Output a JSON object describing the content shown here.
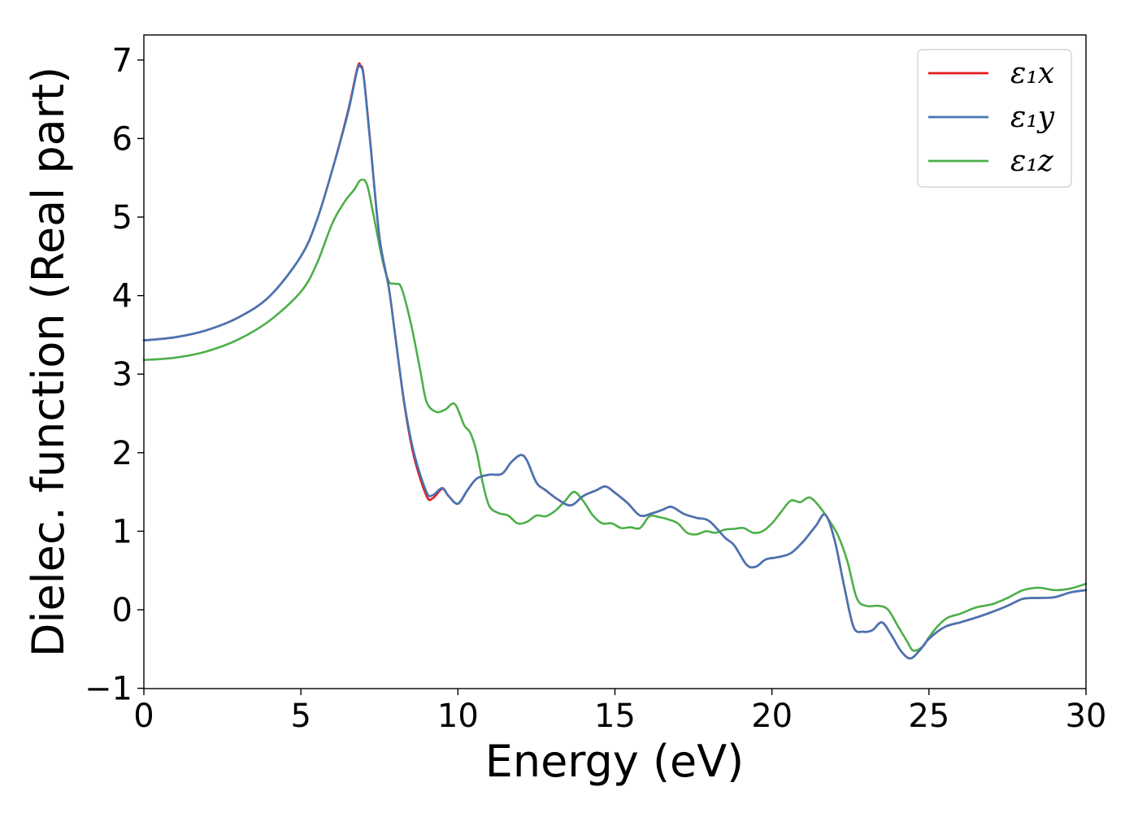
{
  "chart_data": {
    "type": "line",
    "title": "",
    "xlabel": "Energy (eV)",
    "ylabel": "Dielec. function (Real part)",
    "xlim": [
      0,
      30
    ],
    "ylim": [
      -1,
      7.3
    ],
    "xticks": [
      0,
      5,
      10,
      15,
      20,
      25,
      30
    ],
    "yticks": [
      -1,
      0,
      1,
      2,
      3,
      4,
      5,
      6,
      7
    ],
    "xtick_labels": [
      "0",
      "5",
      "10",
      "15",
      "20",
      "25",
      "30"
    ],
    "ytick_labels": [
      "−1",
      "0",
      "1",
      "2",
      "3",
      "4",
      "5",
      "6",
      "7"
    ],
    "grid": false,
    "legend_position": "top-right",
    "series": [
      {
        "name": "ε₁x",
        "color": "#e41a1c",
        "x": [
          0,
          1,
          2,
          3,
          4,
          5,
          5.5,
          6,
          6.5,
          6.8,
          6.9,
          7.0,
          7.2,
          7.5,
          7.8,
          8.0,
          8.3,
          8.6,
          9.0,
          9.2,
          9.5,
          9.7,
          10.0,
          10.3,
          10.6,
          11.0,
          11.4,
          11.7,
          12.0,
          12.2,
          12.5,
          12.8,
          13.2,
          13.6,
          14.0,
          14.4,
          14.7,
          15.0,
          15.4,
          15.8,
          16.2,
          16.5,
          16.8,
          17.2,
          17.6,
          18.0,
          18.5,
          18.8,
          19.2,
          19.5,
          19.8,
          20.2,
          20.6,
          21.0,
          21.4,
          21.7,
          22.0,
          22.3,
          22.6,
          22.9,
          23.2,
          23.5,
          23.8,
          24.1,
          24.4,
          24.7,
          25.0,
          25.5,
          26.0,
          26.5,
          27.0,
          27.5,
          28.0,
          28.5,
          29.0,
          29.5,
          30.0
        ],
        "y": [
          3.43,
          3.47,
          3.56,
          3.72,
          3.99,
          4.5,
          4.95,
          5.6,
          6.35,
          6.9,
          6.93,
          6.8,
          6.0,
          4.75,
          4.1,
          3.5,
          2.6,
          1.95,
          1.45,
          1.42,
          1.54,
          1.45,
          1.35,
          1.52,
          1.67,
          1.72,
          1.73,
          1.88,
          1.97,
          1.9,
          1.62,
          1.52,
          1.4,
          1.33,
          1.45,
          1.52,
          1.57,
          1.49,
          1.36,
          1.2,
          1.23,
          1.27,
          1.31,
          1.22,
          1.17,
          1.13,
          0.92,
          0.82,
          0.57,
          0.55,
          0.64,
          0.67,
          0.72,
          0.87,
          1.07,
          1.21,
          0.88,
          0.3,
          -0.22,
          -0.28,
          -0.26,
          -0.16,
          -0.32,
          -0.52,
          -0.62,
          -0.52,
          -0.37,
          -0.22,
          -0.16,
          -0.1,
          -0.03,
          0.05,
          0.14,
          0.15,
          0.16,
          0.22,
          0.25
        ]
      },
      {
        "name": "ε₁y",
        "color": "#4575b4",
        "x": [
          0,
          1,
          2,
          3,
          4,
          5,
          5.5,
          6,
          6.5,
          6.8,
          6.9,
          7.0,
          7.2,
          7.5,
          7.8,
          8.0,
          8.3,
          8.6,
          9.0,
          9.2,
          9.5,
          9.7,
          10.0,
          10.3,
          10.6,
          11.0,
          11.4,
          11.7,
          12.0,
          12.2,
          12.5,
          12.8,
          13.2,
          13.6,
          14.0,
          14.4,
          14.7,
          15.0,
          15.4,
          15.8,
          16.2,
          16.5,
          16.8,
          17.2,
          17.6,
          18.0,
          18.5,
          18.8,
          19.2,
          19.5,
          19.8,
          20.2,
          20.6,
          21.0,
          21.4,
          21.7,
          22.0,
          22.3,
          22.6,
          22.9,
          23.2,
          23.5,
          23.8,
          24.1,
          24.4,
          24.7,
          25.0,
          25.5,
          26.0,
          26.5,
          27.0,
          27.5,
          28.0,
          28.5,
          29.0,
          29.5,
          30.0
        ],
        "y": [
          3.43,
          3.47,
          3.56,
          3.72,
          3.99,
          4.5,
          4.95,
          5.6,
          6.33,
          6.88,
          6.91,
          6.78,
          5.98,
          4.75,
          4.1,
          3.5,
          2.62,
          2.0,
          1.5,
          1.46,
          1.55,
          1.45,
          1.35,
          1.52,
          1.67,
          1.72,
          1.73,
          1.88,
          1.97,
          1.9,
          1.62,
          1.52,
          1.4,
          1.33,
          1.45,
          1.52,
          1.57,
          1.49,
          1.36,
          1.2,
          1.23,
          1.27,
          1.31,
          1.22,
          1.17,
          1.13,
          0.92,
          0.82,
          0.57,
          0.55,
          0.64,
          0.67,
          0.72,
          0.87,
          1.07,
          1.21,
          0.88,
          0.3,
          -0.22,
          -0.28,
          -0.26,
          -0.16,
          -0.32,
          -0.52,
          -0.62,
          -0.52,
          -0.37,
          -0.22,
          -0.16,
          -0.1,
          -0.03,
          0.05,
          0.14,
          0.15,
          0.16,
          0.22,
          0.25
        ]
      },
      {
        "name": "ε₁z",
        "color": "#4daf4a",
        "x": [
          0,
          1,
          2,
          3,
          4,
          5,
          5.5,
          6,
          6.4,
          6.7,
          6.9,
          7.1,
          7.3,
          7.6,
          7.8,
          8.0,
          8.2,
          8.5,
          8.8,
          9.0,
          9.3,
          9.6,
          9.9,
          10.2,
          10.4,
          10.6,
          10.8,
          11.0,
          11.3,
          11.6,
          11.9,
          12.2,
          12.5,
          12.8,
          13.1,
          13.4,
          13.7,
          14.0,
          14.3,
          14.6,
          14.9,
          15.2,
          15.5,
          15.8,
          16.1,
          16.4,
          16.7,
          17.0,
          17.3,
          17.6,
          17.9,
          18.2,
          18.5,
          18.8,
          19.1,
          19.4,
          19.7,
          20.0,
          20.3,
          20.6,
          20.9,
          21.2,
          21.5,
          21.8,
          22.1,
          22.4,
          22.7,
          23.0,
          23.4,
          23.7,
          24.0,
          24.3,
          24.5,
          24.8,
          25.0,
          25.3,
          25.6,
          26.0,
          26.5,
          27.0,
          27.5,
          28.0,
          28.5,
          29.0,
          29.5,
          30.0
        ],
        "y": [
          3.18,
          3.21,
          3.29,
          3.44,
          3.68,
          4.05,
          4.4,
          4.92,
          5.2,
          5.35,
          5.47,
          5.42,
          5.05,
          4.45,
          4.18,
          4.15,
          4.1,
          3.65,
          3.05,
          2.65,
          2.52,
          2.55,
          2.62,
          2.35,
          2.25,
          2.0,
          1.6,
          1.32,
          1.23,
          1.2,
          1.1,
          1.12,
          1.2,
          1.19,
          1.26,
          1.38,
          1.5,
          1.38,
          1.2,
          1.1,
          1.1,
          1.04,
          1.05,
          1.04,
          1.19,
          1.18,
          1.15,
          1.1,
          0.98,
          0.96,
          1.0,
          0.98,
          1.02,
          1.03,
          1.04,
          0.98,
          1.0,
          1.1,
          1.25,
          1.39,
          1.37,
          1.43,
          1.32,
          1.15,
          0.95,
          0.62,
          0.15,
          0.05,
          0.05,
          0.0,
          -0.2,
          -0.4,
          -0.52,
          -0.47,
          -0.35,
          -0.2,
          -0.1,
          -0.05,
          0.03,
          0.07,
          0.15,
          0.25,
          0.28,
          0.25,
          0.27,
          0.33
        ]
      }
    ]
  }
}
